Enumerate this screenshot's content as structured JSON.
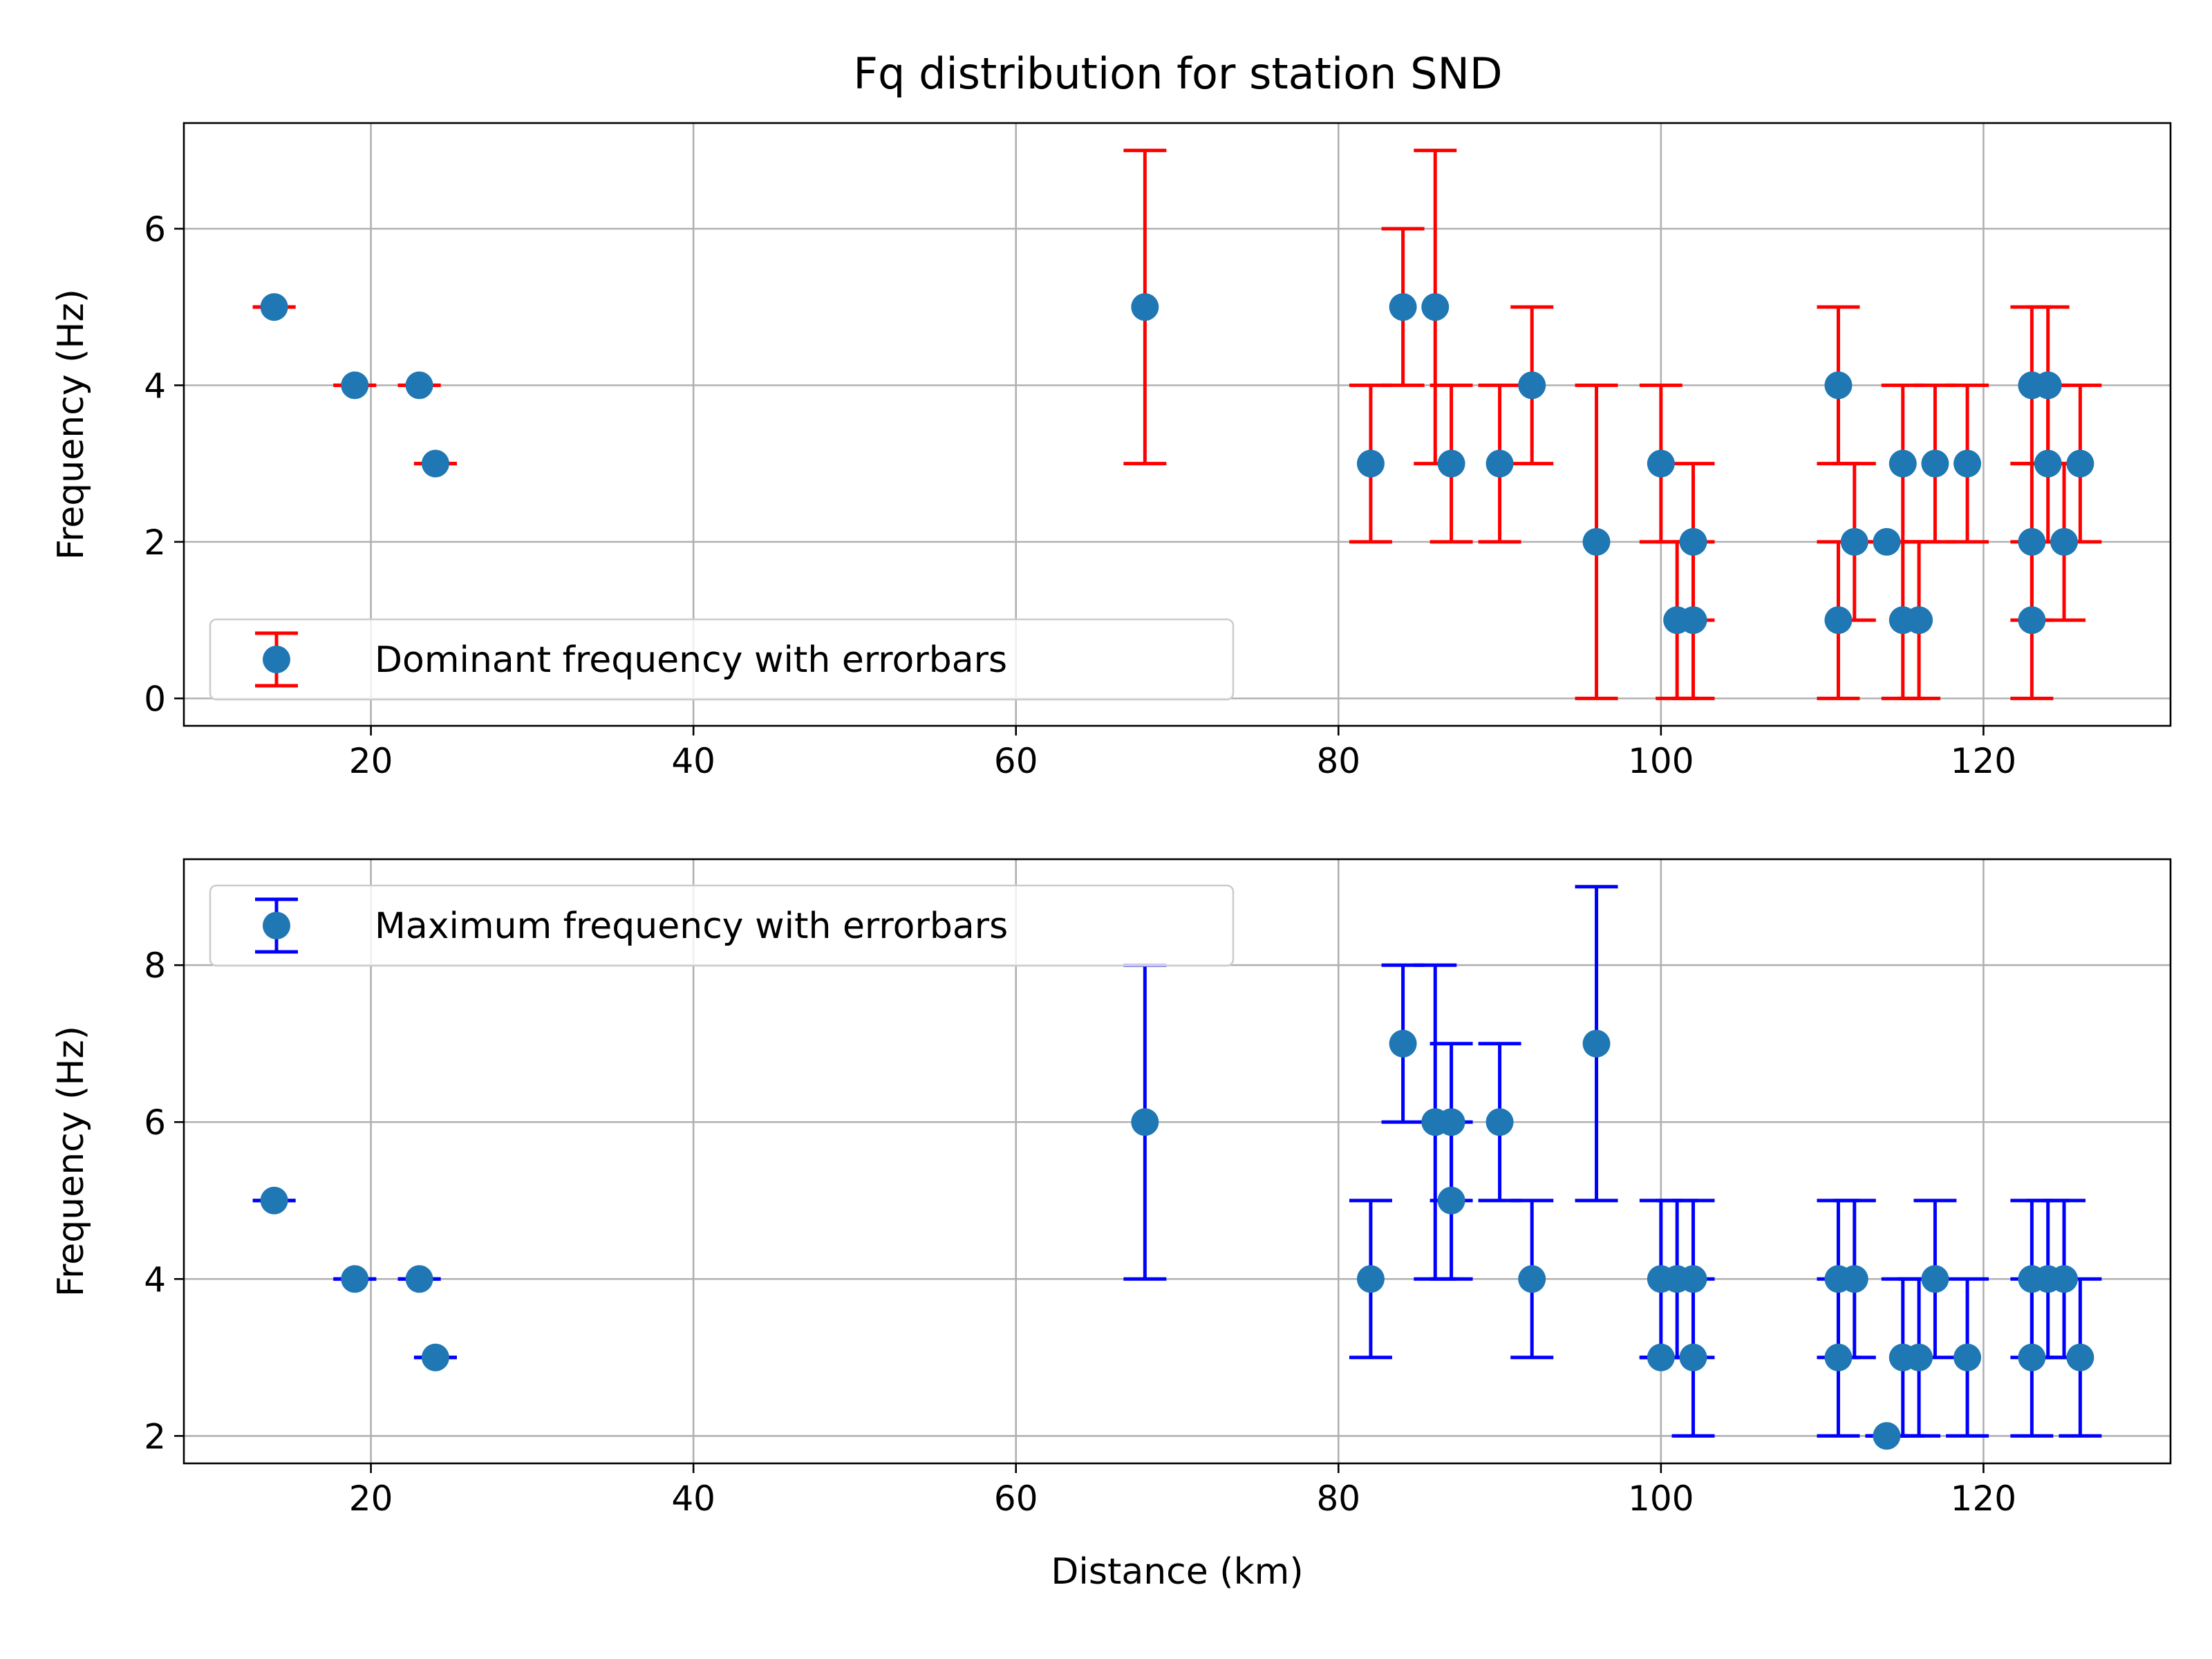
{
  "figure": {
    "title": "Fq distribution for station SND"
  },
  "colors": {
    "marker": "#1f77b4",
    "top_errorbar": "#ff0000",
    "bottom_errorbar": "#0000ff",
    "grid": "#b0b0b0"
  },
  "chart_data": [
    {
      "type": "scatter",
      "title": "Fq distribution for station SND",
      "xlabel": "",
      "ylabel": "Frequency (Hz)",
      "xlim": [
        8.4,
        131.6
      ],
      "ylim": [
        -0.35,
        7.35
      ],
      "xticks": [
        20,
        40,
        60,
        80,
        100,
        120
      ],
      "yticks": [
        0,
        2,
        4,
        6
      ],
      "grid": true,
      "legend_position": "lower-left",
      "series": [
        {
          "name": "Dominant frequency with errorbars",
          "errorbar_color": "red",
          "points": [
            {
              "x": 14,
              "y": 5,
              "lo": 5,
              "hi": 5
            },
            {
              "x": 19,
              "y": 4,
              "lo": 4,
              "hi": 4
            },
            {
              "x": 23,
              "y": 4,
              "lo": 4,
              "hi": 4
            },
            {
              "x": 24,
              "y": 3,
              "lo": 3,
              "hi": 3
            },
            {
              "x": 68,
              "y": 5,
              "lo": 3,
              "hi": 7
            },
            {
              "x": 82,
              "y": 3,
              "lo": 2,
              "hi": 4
            },
            {
              "x": 84,
              "y": 5,
              "lo": 4,
              "hi": 6
            },
            {
              "x": 86,
              "y": 5,
              "lo": 3,
              "hi": 7
            },
            {
              "x": 87,
              "y": 3,
              "lo": 2,
              "hi": 4
            },
            {
              "x": 90,
              "y": 3,
              "lo": 2,
              "hi": 4
            },
            {
              "x": 92,
              "y": 4,
              "lo": 3,
              "hi": 5
            },
            {
              "x": 96,
              "y": 2,
              "lo": 0,
              "hi": 4
            },
            {
              "x": 100,
              "y": 3,
              "lo": 2,
              "hi": 4
            },
            {
              "x": 101,
              "y": 1,
              "lo": 0,
              "hi": 2
            },
            {
              "x": 102,
              "y": 2,
              "lo": 1,
              "hi": 3
            },
            {
              "x": 102,
              "y": 1,
              "lo": 0,
              "hi": 2
            },
            {
              "x": 111,
              "y": 4,
              "lo": 3,
              "hi": 5
            },
            {
              "x": 111,
              "y": 1,
              "lo": 0,
              "hi": 2
            },
            {
              "x": 112,
              "y": 2,
              "lo": 1,
              "hi": 3
            },
            {
              "x": 114,
              "y": 2,
              "lo": 2,
              "hi": 2
            },
            {
              "x": 115,
              "y": 3,
              "lo": 2,
              "hi": 4
            },
            {
              "x": 115,
              "y": 1,
              "lo": 0,
              "hi": 2
            },
            {
              "x": 116,
              "y": 1,
              "lo": 0,
              "hi": 2
            },
            {
              "x": 117,
              "y": 3,
              "lo": 2,
              "hi": 4
            },
            {
              "x": 119,
              "y": 3,
              "lo": 2,
              "hi": 4
            },
            {
              "x": 123,
              "y": 4,
              "lo": 3,
              "hi": 5
            },
            {
              "x": 123,
              "y": 2,
              "lo": 1,
              "hi": 3
            },
            {
              "x": 123,
              "y": 1,
              "lo": 0,
              "hi": 2
            },
            {
              "x": 124,
              "y": 4,
              "lo": 3,
              "hi": 5
            },
            {
              "x": 124,
              "y": 3,
              "lo": 2,
              "hi": 4
            },
            {
              "x": 125,
              "y": 2,
              "lo": 1,
              "hi": 3
            },
            {
              "x": 126,
              "y": 3,
              "lo": 2,
              "hi": 4
            }
          ]
        }
      ]
    },
    {
      "type": "scatter",
      "title": "",
      "xlabel": "Distance (km)",
      "ylabel": "Frequency (Hz)",
      "xlim": [
        8.4,
        131.6
      ],
      "ylim": [
        1.65,
        9.35
      ],
      "xticks": [
        20,
        40,
        60,
        80,
        100,
        120
      ],
      "yticks": [
        2,
        4,
        6,
        8
      ],
      "grid": true,
      "legend_position": "upper-left",
      "series": [
        {
          "name": "Maximum frequency with errorbars",
          "errorbar_color": "blue",
          "points": [
            {
              "x": 14,
              "y": 5,
              "lo": 5,
              "hi": 5
            },
            {
              "x": 19,
              "y": 4,
              "lo": 4,
              "hi": 4
            },
            {
              "x": 23,
              "y": 4,
              "lo": 4,
              "hi": 4
            },
            {
              "x": 24,
              "y": 3,
              "lo": 3,
              "hi": 3
            },
            {
              "x": 68,
              "y": 6,
              "lo": 4,
              "hi": 8
            },
            {
              "x": 82,
              "y": 4,
              "lo": 3,
              "hi": 5
            },
            {
              "x": 84,
              "y": 7,
              "lo": 6,
              "hi": 8
            },
            {
              "x": 86,
              "y": 6,
              "lo": 4,
              "hi": 8
            },
            {
              "x": 87,
              "y": 6,
              "lo": 5,
              "hi": 7
            },
            {
              "x": 87,
              "y": 5,
              "lo": 4,
              "hi": 6
            },
            {
              "x": 90,
              "y": 6,
              "lo": 5,
              "hi": 7
            },
            {
              "x": 92,
              "y": 4,
              "lo": 3,
              "hi": 5
            },
            {
              "x": 96,
              "y": 7,
              "lo": 5,
              "hi": 9
            },
            {
              "x": 100,
              "y": 4,
              "lo": 3,
              "hi": 5
            },
            {
              "x": 100,
              "y": 3,
              "lo": 3,
              "hi": 3
            },
            {
              "x": 101,
              "y": 4,
              "lo": 3,
              "hi": 5
            },
            {
              "x": 102,
              "y": 4,
              "lo": 3,
              "hi": 5
            },
            {
              "x": 102,
              "y": 3,
              "lo": 2,
              "hi": 4
            },
            {
              "x": 111,
              "y": 4,
              "lo": 3,
              "hi": 5
            },
            {
              "x": 111,
              "y": 3,
              "lo": 2,
              "hi": 4
            },
            {
              "x": 112,
              "y": 4,
              "lo": 3,
              "hi": 5
            },
            {
              "x": 114,
              "y": 2,
              "lo": 2,
              "hi": 2
            },
            {
              "x": 115,
              "y": 3,
              "lo": 2,
              "hi": 4
            },
            {
              "x": 116,
              "y": 3,
              "lo": 2,
              "hi": 4
            },
            {
              "x": 117,
              "y": 4,
              "lo": 3,
              "hi": 5
            },
            {
              "x": 119,
              "y": 3,
              "lo": 2,
              "hi": 4
            },
            {
              "x": 123,
              "y": 4,
              "lo": 3,
              "hi": 5
            },
            {
              "x": 123,
              "y": 3,
              "lo": 2,
              "hi": 4
            },
            {
              "x": 124,
              "y": 4,
              "lo": 3,
              "hi": 5
            },
            {
              "x": 125,
              "y": 4,
              "lo": 3,
              "hi": 5
            },
            {
              "x": 126,
              "y": 3,
              "lo": 2,
              "hi": 4
            }
          ]
        }
      ]
    }
  ]
}
